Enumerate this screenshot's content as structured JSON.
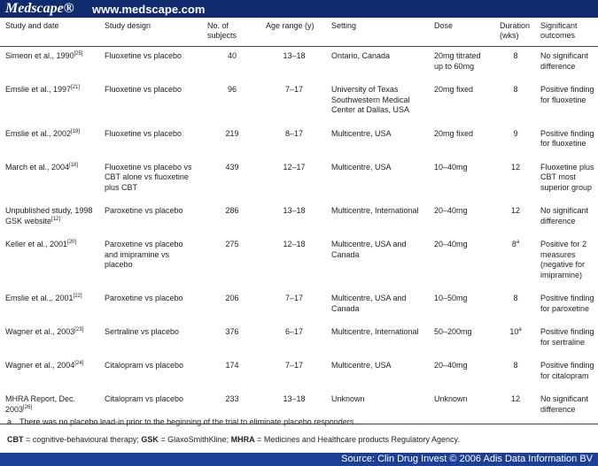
{
  "header": {
    "brand": "Medscape®",
    "url": "www.medscape.com"
  },
  "table": {
    "columns": [
      "Study and date",
      "Study design",
      "No. of subjects",
      "Age range (y)",
      "Setting",
      "Dose",
      "Duration (wks)",
      "Significant outcomes"
    ],
    "rows": [
      {
        "study": "Simeon et al., 1990",
        "ref": "[25]",
        "design": "Fluoxetine vs placebo",
        "subjects": "40",
        "age": "13–18",
        "setting": "Ontario, Canada",
        "dose": "20mg titrated up to 60mg",
        "duration": "8",
        "note": null,
        "outcome": "No significant difference"
      },
      {
        "study": "Emslie et al., 1997",
        "ref": "[21]",
        "design": "Fluoxetine vs placebo",
        "subjects": "96",
        "age": "7–17",
        "setting": "University of Texas Southwestern Medical Center at Dallas, USA",
        "dose": "20mg fixed",
        "duration": "8",
        "note": null,
        "outcome": "Positive finding for fluoxetine"
      },
      {
        "study": "Emslie et al., 2002",
        "ref": "[19]",
        "design": "Fluoxetine vs placebo",
        "subjects": "219",
        "age": "8–17",
        "setting": "Multicentre, USA",
        "dose": "20mg fixed",
        "duration": "9",
        "note": null,
        "outcome": "Positive finding for fluoxetine"
      },
      {
        "study": "March et al., 2004",
        "ref": "[18]",
        "design": "Fluoxetine vs placebo vs CBT alone vs fluoxetine plus CBT",
        "subjects": "439",
        "age": "12–17",
        "setting": "Multicentre, USA",
        "dose": "10–40mg",
        "duration": "12",
        "note": null,
        "outcome": "Fluoxetine plus CBT most superior group"
      },
      {
        "study": "Unpublished study, 1998 GSK website",
        "ref": "[12]",
        "design": "Paroxetine vs placebo",
        "subjects": "286",
        "age": "13–18",
        "setting": "Multicentre, International",
        "dose": "20–40mg",
        "duration": "12",
        "note": null,
        "outcome": "No significant difference"
      },
      {
        "study": "Keller et al., 2001",
        "ref": "[20]",
        "design": "Paroxetine vs placebo and imipramine vs placebo",
        "subjects": "275",
        "age": "12–18",
        "setting": "Multicentre, USA and Canada",
        "dose": "20–40mg",
        "duration": "8",
        "note": "a",
        "outcome": "Positive for 2 measures (negative for imipramine)"
      },
      {
        "study": "Emslie et al.,, 2001",
        "ref": "[22]",
        "design": "Paroxetine vs placebo",
        "subjects": "206",
        "age": "7–17",
        "setting": "Multicentre, USA and Canada",
        "dose": "10–50mg",
        "duration": "8",
        "note": null,
        "outcome": "Positive finding for paroxetine"
      },
      {
        "study": "Wagner et al., 2003",
        "ref": "[23]",
        "design": "Sertraline vs placebo",
        "subjects": "376",
        "age": "6–17",
        "setting": "Multicentre, International",
        "dose": "50–200mg",
        "duration": "10",
        "note": "a",
        "outcome": "Positive finding for sertraline"
      },
      {
        "study": "Wagner et al., 2004",
        "ref": "[24]",
        "design": "Citalopram vs placebo",
        "subjects": "174",
        "age": "7–17",
        "setting": "Multicentre, USA",
        "dose": "20–40mg",
        "duration": "8",
        "note": null,
        "outcome": "Positive finding for citalopram"
      },
      {
        "study": "MHRA Report, Dec. 2003",
        "ref": "[26]",
        "design": "Citalopram vs placebo",
        "subjects": "233",
        "age": "13–18",
        "setting": "Unknown",
        "dose": "Unknown",
        "duration": "12",
        "note": null,
        "outcome": "No significant difference"
      }
    ]
  },
  "footnote": {
    "mark": "a",
    "text": "There was no placebo lead-in prior to the beginning of the trial to eliminate placebo responders."
  },
  "abbreviations": [
    {
      "abbr": "CBT",
      "text": " = cognitive-behavioural therapy; "
    },
    {
      "abbr": "GSK",
      "text": " = GlaxoSmithKline; "
    },
    {
      "abbr": "MHRA",
      "text": " = Medicines and Healthcare products Regulatory Agency."
    }
  ],
  "footer": {
    "source": "Source: Clin Drug Invest © 2006 Adis Data Information BV"
  }
}
